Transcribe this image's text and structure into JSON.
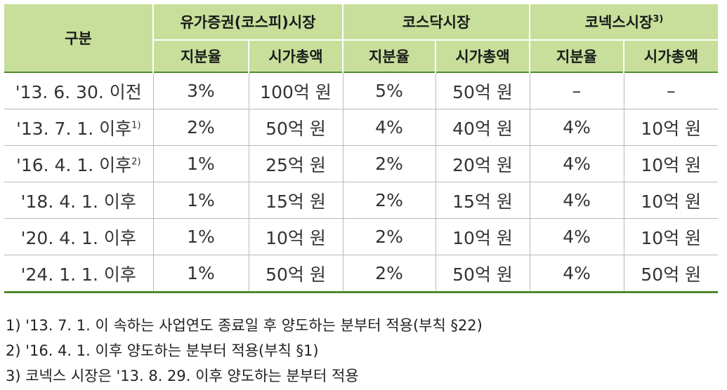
{
  "table": {
    "header": {
      "category": "구분",
      "groups": [
        {
          "label": "유가증권(코스피)시장",
          "note": ""
        },
        {
          "label": "코스닥시장",
          "note": ""
        },
        {
          "label": "코넥스시장",
          "note": "3)"
        }
      ],
      "subheaders": [
        "지분율",
        "시가총액",
        "지분율",
        "시가총액",
        "지분율",
        "시가총액"
      ]
    },
    "rows": [
      {
        "label": "'13. 6. 30. 이전",
        "note": "",
        "cells": [
          "3%",
          "100억 원",
          "5%",
          "50억 원",
          "–",
          "–"
        ]
      },
      {
        "label": "'13. 7. 1. 이후",
        "note": "1)",
        "cells": [
          "2%",
          "50억 원",
          "4%",
          "40억 원",
          "4%",
          "10억 원"
        ]
      },
      {
        "label": "'16. 4. 1. 이후",
        "note": "2)",
        "cells": [
          "1%",
          "25억 원",
          "2%",
          "20억 원",
          "4%",
          "10억 원"
        ]
      },
      {
        "label": "'18. 4. 1. 이후",
        "note": "",
        "cells": [
          "1%",
          "15억 원",
          "2%",
          "15억 원",
          "4%",
          "10억 원"
        ]
      },
      {
        "label": "'20. 4. 1. 이후",
        "note": "",
        "cells": [
          "1%",
          "10억 원",
          "2%",
          "10억 원",
          "4%",
          "10억 원"
        ]
      },
      {
        "label": "'24. 1. 1. 이후",
        "note": "",
        "cells": [
          "1%",
          "50억 원",
          "2%",
          "50억 원",
          "4%",
          "50억 원"
        ]
      }
    ]
  },
  "footnotes": [
    "1) '13. 7. 1. 이 속하는 사업연도 종료일 후 양도하는 분부터 적용(부칙 §22)",
    "2) '16. 4. 1. 이후 양도하는 분부터 적용(부칙 §1)",
    "3) 코넥스 시장은 '13. 8. 29. 이후 양도하는 분부터 적용"
  ]
}
